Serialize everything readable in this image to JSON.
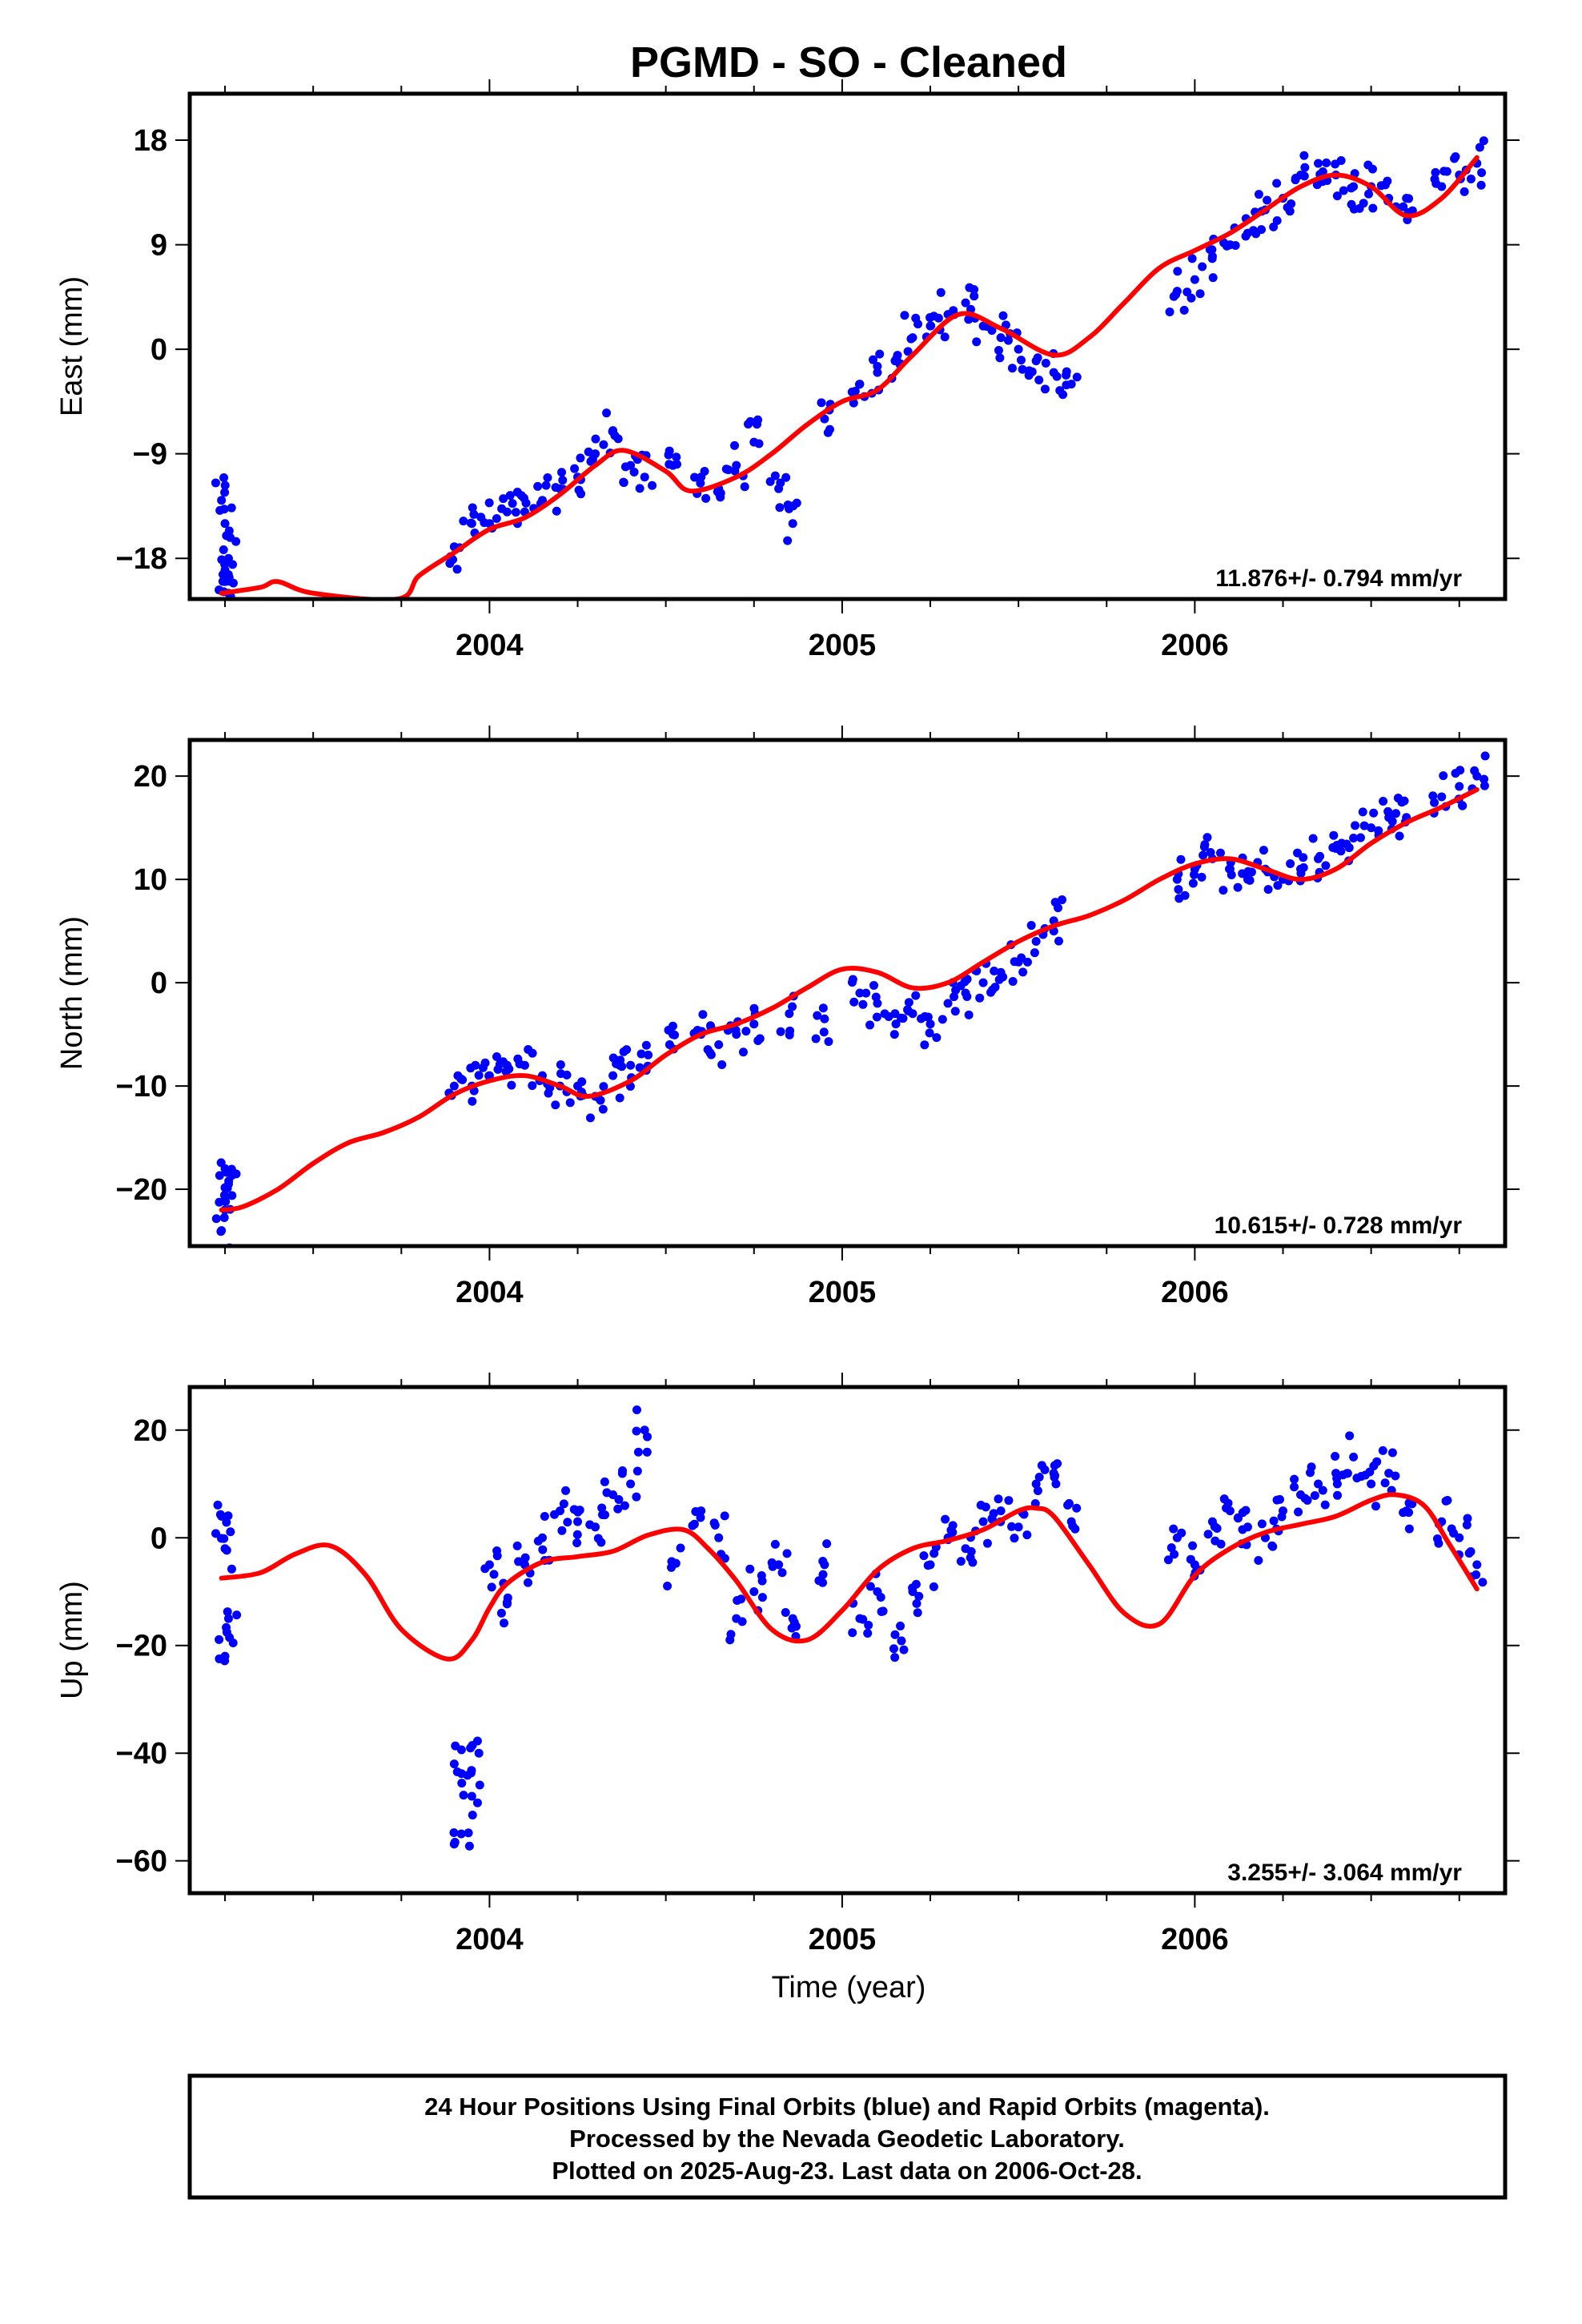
{
  "title": "PGMD  - SO - Cleaned",
  "x_axis_label": "Time (year)",
  "caption": [
    "24 Hour Positions Using Final Orbits (blue) and Rapid Orbits (magenta).",
    "Processed by the Nevada Geodetic Laboratory.",
    "Plotted on 2025-Aug-23. Last data on 2006-Oct-28."
  ],
  "colors": {
    "observations": "#0000ff",
    "model": "#ff0000",
    "frame": "#000000"
  },
  "chart_data": [
    {
      "type": "scatter",
      "panel": "east",
      "ylabel": "East (mm)",
      "rate_label": "11.876+/- 0.794 mm/yr",
      "xlim": [
        2003.15,
        2006.88
      ],
      "ylim": [
        -21.5,
        22
      ],
      "xticks": [
        2004,
        2005,
        2006
      ],
      "xtick_labels": [
        "2004",
        "2005",
        "2006"
      ],
      "yticks": [
        -18,
        -9,
        0,
        9,
        18
      ],
      "ytick_labels": [
        "−18",
        "−9",
        "0",
        "9",
        "18"
      ],
      "series": [
        {
          "kind": "observations",
          "x": [
            2003.24,
            2003.25,
            2003.26,
            2003.25,
            2003.26,
            2003.25,
            2003.9,
            2003.95,
            2004.0,
            2004.05,
            2004.1,
            2004.15,
            2004.2,
            2004.25,
            2004.3,
            2004.35,
            2004.4,
            2004.44,
            2004.52,
            2004.6,
            2004.65,
            2004.7,
            2004.75,
            2004.82,
            2004.86,
            2004.95,
            2005.05,
            2005.1,
            2005.15,
            2005.2,
            2005.25,
            2005.3,
            2005.35,
            2005.4,
            2005.45,
            2005.5,
            2005.55,
            2005.6,
            2005.65,
            2005.95,
            2006.0,
            2006.05,
            2006.1,
            2006.15,
            2006.2,
            2006.25,
            2006.3,
            2006.35,
            2006.4,
            2006.45,
            2006.5,
            2006.55,
            2006.6,
            2006.7,
            2006.75,
            2006.8
          ],
          "y": [
            -13,
            -15,
            -18,
            -20,
            -21,
            -19,
            -17,
            -15,
            -15,
            -14,
            -14,
            -13,
            -12,
            -11,
            -9,
            -7,
            -10,
            -11,
            -10,
            -11,
            -12,
            -10,
            -8,
            -12,
            -15,
            -6,
            -3,
            -2,
            -1,
            1,
            2,
            3,
            4,
            2,
            1,
            0,
            -1,
            -2,
            -3,
            5,
            6,
            8,
            9,
            10,
            12,
            13,
            15,
            16,
            15,
            14,
            14,
            13,
            13,
            14,
            15,
            16
          ]
        },
        {
          "kind": "model",
          "x": [
            2003.24,
            2003.35,
            2003.4,
            2003.5,
            2003.74,
            2003.8,
            2003.9,
            2004.0,
            2004.1,
            2004.2,
            2004.3,
            2004.38,
            2004.5,
            2004.57,
            2004.7,
            2004.8,
            2004.9,
            2005.0,
            2005.1,
            2005.2,
            2005.33,
            2005.45,
            2005.6,
            2005.7,
            2005.8,
            2005.9,
            2006.0,
            2006.1,
            2006.2,
            2006.3,
            2006.4,
            2006.5,
            2006.6,
            2006.7,
            2006.8
          ],
          "y": [
            -21,
            -20.5,
            -20,
            -21,
            -21.5,
            -19.5,
            -17.5,
            -15.5,
            -14.5,
            -12.5,
            -10,
            -8.7,
            -10.5,
            -12.2,
            -11,
            -9,
            -6.5,
            -4.5,
            -3.5,
            -0.5,
            3,
            1.8,
            -0.5,
            1,
            4,
            7,
            8.5,
            10,
            12,
            14,
            15,
            14,
            11.5,
            13,
            16.5
          ]
        }
      ]
    },
    {
      "type": "scatter",
      "panel": "north",
      "ylabel": "North (mm)",
      "rate_label": "10.615+/- 0.728 mm/yr",
      "xlim": [
        2003.15,
        2006.88
      ],
      "ylim": [
        -25.5,
        23.5
      ],
      "xticks": [
        2004,
        2005,
        2006
      ],
      "xtick_labels": [
        "2004",
        "2005",
        "2006"
      ],
      "yticks": [
        -20,
        -10,
        0,
        10,
        20
      ],
      "ytick_labels": [
        "−20",
        "−10",
        "0",
        "10",
        "20"
      ],
      "series": [
        {
          "kind": "observations",
          "x": [
            2003.25,
            2003.26,
            2003.25,
            2003.24,
            2003.9,
            2003.95,
            2004.0,
            2004.05,
            2004.1,
            2004.15,
            2004.2,
            2004.25,
            2004.3,
            2004.35,
            2004.4,
            2004.45,
            2004.52,
            2004.6,
            2004.65,
            2004.7,
            2004.75,
            2004.85,
            2004.95,
            2005.05,
            2005.1,
            2005.15,
            2005.2,
            2005.25,
            2005.3,
            2005.35,
            2005.4,
            2005.45,
            2005.5,
            2005.55,
            2005.6,
            2005.95,
            2006.0,
            2006.05,
            2006.1,
            2006.15,
            2006.2,
            2006.25,
            2006.3,
            2006.35,
            2006.4,
            2006.45,
            2006.5,
            2006.55,
            2006.6,
            2006.7,
            2006.75,
            2006.8
          ],
          "y": [
            -18,
            -19.5,
            -22,
            -24,
            -10,
            -10,
            -9,
            -8,
            -8,
            -9,
            -10,
            -10,
            -11,
            -9,
            -8,
            -7,
            -5,
            -5,
            -6,
            -5,
            -4,
            -3,
            -3.5,
            -1,
            -2,
            -3,
            -3,
            -4,
            -2,
            -1,
            0,
            1,
            2,
            4,
            6,
            10,
            11,
            12,
            11,
            10,
            11,
            10,
            11,
            12,
            13,
            14,
            15,
            16,
            16,
            18,
            19,
            20
          ]
        },
        {
          "kind": "model",
          "x": [
            2003.24,
            2003.3,
            2003.4,
            2003.5,
            2003.6,
            2003.7,
            2003.8,
            2003.9,
            2004.0,
            2004.1,
            2004.2,
            2004.28,
            2004.4,
            2004.5,
            2004.6,
            2004.7,
            2004.8,
            2004.9,
            2005.0,
            2005.1,
            2005.2,
            2005.3,
            2005.4,
            2005.5,
            2005.6,
            2005.7,
            2005.8,
            2005.9,
            2006.0,
            2006.1,
            2006.2,
            2006.3,
            2006.4,
            2006.5,
            2006.6,
            2006.7,
            2006.8
          ],
          "y": [
            -22,
            -21.7,
            -20,
            -17.5,
            -15.5,
            -14.5,
            -13,
            -10.8,
            -9.5,
            -9,
            -10,
            -11,
            -9.5,
            -7,
            -5,
            -4,
            -2.5,
            -0.5,
            1.3,
            1,
            -0.5,
            0,
            2,
            4,
            5.5,
            6.5,
            8,
            10,
            11.5,
            12,
            11,
            10,
            11,
            13.5,
            15.5,
            17,
            18.7
          ]
        }
      ]
    },
    {
      "type": "scatter",
      "panel": "up",
      "ylabel": "Up (mm)",
      "rate_label": "3.255+/- 3.064 mm/yr",
      "xlim": [
        2003.15,
        2006.88
      ],
      "ylim": [
        -66,
        28
      ],
      "xticks": [
        2004,
        2005,
        2006
      ],
      "xtick_labels": [
        "2004",
        "2005",
        "2006"
      ],
      "yticks": [
        -60,
        -40,
        -20,
        0,
        20
      ],
      "ytick_labels": [
        "−60",
        "−40",
        "−20",
        "0",
        "20"
      ],
      "series": [
        {
          "kind": "observations",
          "x": [
            2003.24,
            2003.25,
            2003.26,
            2003.25,
            2003.9,
            2003.92,
            2003.95,
            2003.97,
            2004.0,
            2004.05,
            2004.1,
            2004.15,
            2004.2,
            2004.25,
            2004.3,
            2004.35,
            2004.4,
            2004.44,
            2004.52,
            2004.6,
            2004.65,
            2004.7,
            2004.75,
            2004.82,
            2004.86,
            2004.95,
            2005.05,
            2005.1,
            2005.15,
            2005.2,
            2005.25,
            2005.3,
            2005.35,
            2005.4,
            2005.45,
            2005.5,
            2005.55,
            2005.6,
            2005.65,
            2005.95,
            2006.0,
            2006.05,
            2006.1,
            2006.15,
            2006.2,
            2006.25,
            2006.3,
            2006.35,
            2006.4,
            2006.45,
            2006.5,
            2006.55,
            2006.6,
            2006.7,
            2006.75,
            2006.8
          ],
          "y": [
            4,
            -2,
            -15,
            -22,
            -42,
            -55,
            -48,
            -40,
            -5,
            -12,
            -5,
            0,
            5,
            3,
            2,
            8,
            10,
            20,
            -5,
            5,
            0,
            -15,
            -10,
            -5,
            -15,
            -5,
            -15,
            -10,
            -18,
            -10,
            -5,
            0,
            -2,
            3,
            5,
            2,
            10,
            12,
            3,
            0,
            -5,
            3,
            5,
            2,
            0,
            5,
            8,
            10,
            12,
            15,
            10,
            12,
            5,
            3,
            0,
            -5
          ]
        },
        {
          "kind": "model",
          "x": [
            2003.24,
            2003.35,
            2003.45,
            2003.55,
            2003.65,
            2003.75,
            2003.88,
            2003.95,
            2004.0,
            2004.05,
            2004.15,
            2004.25,
            2004.35,
            2004.45,
            2004.55,
            2004.62,
            2004.7,
            2004.8,
            2004.9,
            2005.0,
            2005.1,
            2005.2,
            2005.3,
            2005.4,
            2005.5,
            2005.55,
            2005.6,
            2005.7,
            2005.8,
            2005.9,
            2006.0,
            2006.1,
            2006.2,
            2006.3,
            2006.4,
            2006.5,
            2006.57,
            2006.65,
            2006.72,
            2006.8
          ],
          "y": [
            -7.5,
            -6.5,
            -3,
            -1.5,
            -7,
            -17,
            -22.5,
            -19,
            -13,
            -8.5,
            -4.5,
            -3.5,
            -2.5,
            0.5,
            1.5,
            -2,
            -8,
            -17,
            -19,
            -13.5,
            -6,
            -2,
            -0.5,
            1.5,
            5,
            5.5,
            4,
            -5,
            -14,
            -16,
            -7,
            -2,
            1,
            2.5,
            4,
            7,
            8,
            6,
            -1,
            -9.5
          ]
        }
      ]
    }
  ]
}
